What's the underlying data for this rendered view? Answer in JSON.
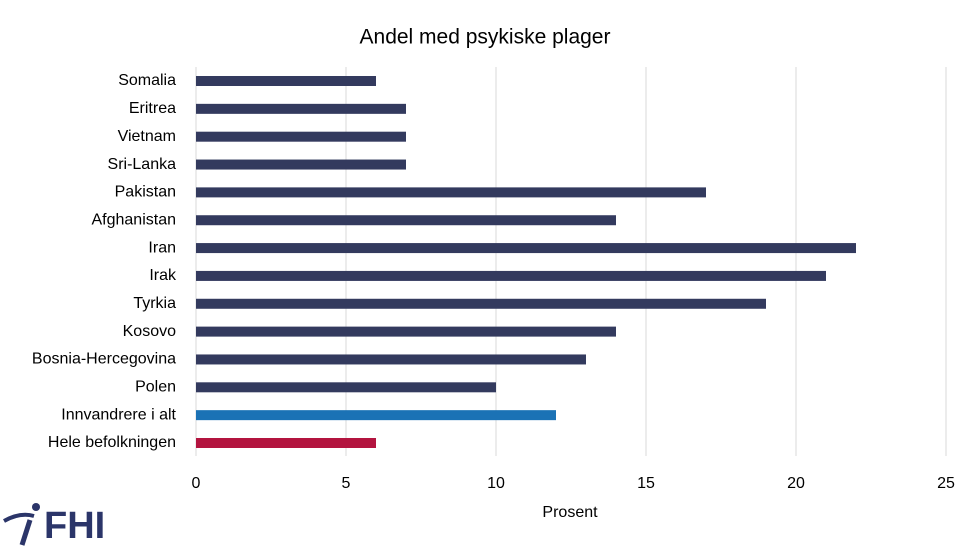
{
  "chart_data": {
    "type": "bar",
    "orientation": "horizontal",
    "title": "Andel med psykiske plager",
    "x_label": "Prosent",
    "categories": [
      "Somalia",
      "Eritrea",
      "Vietnam",
      "Sri-Lanka",
      "Pakistan",
      "Afghanistan",
      "Iran",
      "Irak",
      "Tyrkia",
      "Kosovo",
      "Bosnia-Hercegovina",
      "Polen",
      "Innvandrere i alt",
      "Hele befolkningen"
    ],
    "values": [
      6,
      7,
      7,
      7,
      17,
      14,
      22,
      21,
      19,
      14,
      13,
      10,
      12,
      6
    ],
    "colors": [
      "#333a5e",
      "#333a5e",
      "#333a5e",
      "#333a5e",
      "#333a5e",
      "#333a5e",
      "#333a5e",
      "#333a5e",
      "#333a5e",
      "#333a5e",
      "#333a5e",
      "#333a5e",
      "#1b72b5",
      "#b3143f"
    ],
    "xlim": [
      0,
      25
    ],
    "xticks": [
      0,
      5,
      10,
      15,
      20,
      25
    ],
    "grid": true
  },
  "logo": "FHI"
}
